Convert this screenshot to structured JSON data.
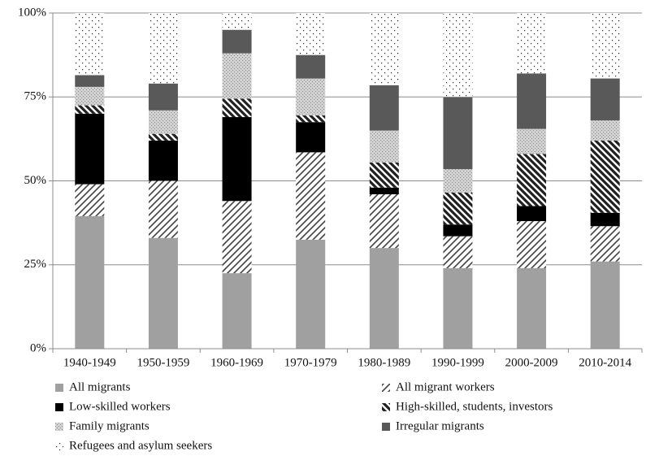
{
  "chart_data": {
    "type": "stacked-bar",
    "categories": [
      "1940-1949",
      "1950-1959",
      "1960-1969",
      "1970-1979",
      "1980-1989",
      "1990-1999",
      "2000-2009",
      "2010-2014"
    ],
    "series": [
      {
        "name": "All migrants",
        "color": "#a0a0a0",
        "pattern": "solid",
        "values": [
          39.5,
          33,
          22.5,
          32.5,
          30,
          24,
          24,
          26
        ]
      },
      {
        "name": "All migrant workers",
        "color": "#404040",
        "pattern": "hatch-forward",
        "values": [
          9.5,
          17,
          21.5,
          26,
          16,
          9.5,
          14,
          10.5
        ]
      },
      {
        "name": "Low-skilled workers",
        "color": "#000000",
        "pattern": "solid",
        "values": [
          21,
          12,
          25,
          9,
          2,
          3.5,
          4.5,
          4
        ]
      },
      {
        "name": "High-skilled, students, investors",
        "color": "#202020",
        "pattern": "hatch-back",
        "values": [
          2.5,
          2,
          5.5,
          2,
          7.5,
          9.5,
          15.5,
          21.5
        ]
      },
      {
        "name": "Family migrants",
        "color": "#d2d2d2",
        "pattern": "dots",
        "values": [
          5.5,
          7,
          13.5,
          11,
          9.5,
          7,
          7.5,
          6
        ]
      },
      {
        "name": "Irregular migrants",
        "color": "#595959",
        "pattern": "solid",
        "values": [
          3.5,
          8,
          7,
          7,
          13.5,
          21.5,
          16.5,
          12.5
        ]
      },
      {
        "name": "Refugees and asylum seekers",
        "color": "#ffffff",
        "pattern": "sparse-dots",
        "values": [
          18.5,
          21,
          5,
          12.5,
          21.5,
          25,
          18,
          19.5
        ]
      }
    ],
    "ylim": [
      0,
      100
    ],
    "yticks": [
      {
        "value": 0,
        "label": "0%"
      },
      {
        "value": 25,
        "label": "25%"
      },
      {
        "value": 50,
        "label": "50%"
      },
      {
        "value": 75,
        "label": "75%"
      },
      {
        "value": 100,
        "label": "100%"
      }
    ],
    "grid": true,
    "legend": "bottom"
  }
}
